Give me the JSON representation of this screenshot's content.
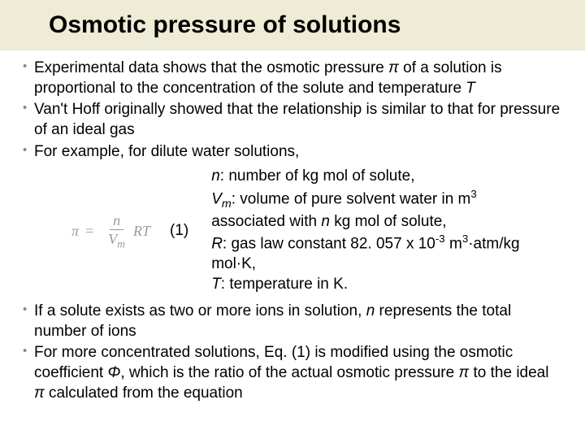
{
  "title": "Osmotic pressure of solutions",
  "bullets_top": [
    {
      "pre": "Experimental data shows that the osmotic pressure ",
      "sym1": "π",
      "mid": " of a solution is proportional to the concentration of the solute and temperature ",
      "sym2": "T"
    },
    {
      "text": "Van't Hoff originally showed that the relationship is similar to that for pressure of an ideal gas"
    },
    {
      "text": "For example, for dilute water solutions,"
    }
  ],
  "equation": {
    "lhs": "π",
    "eq": "=",
    "num": "n",
    "den_base": "V",
    "den_sub": "m",
    "rhs": "RT",
    "label": "(1)"
  },
  "defs": {
    "l1_a": "n",
    "l1_b": ": number of kg mol of solute,",
    "l2_a": "V",
    "l2_sub": "m",
    "l2_b": ": volume of pure solvent water in m",
    "l2_sup": "3",
    "l3_a": "associated with ",
    "l3_b": "n",
    "l3_c": " kg mol of solute,",
    "l4_a": "R",
    "l4_b": ": gas law constant 82. 057 x 10",
    "l4_sup": "-3",
    "l4_c": " m",
    "l4_sup2": "3",
    "l4_d": "·atm/kg mol·K,",
    "l5_a": "T",
    "l5_b": ": temperature in K."
  },
  "bullets_bottom": [
    {
      "pre": "If a solute exists as two or more ions in solution, ",
      "sym": "n",
      "post": " represents the total number of ions"
    },
    {
      "pre": "For more concentrated solutions, Eq. (1) is modified using the osmotic coefficient ",
      "sym1": "Φ",
      "mid": ", which is the ratio of the actual osmotic pressure ",
      "sym2": "π",
      "mid2": " to the ideal ",
      "sym3": "π",
      "post": " calculated from the equation"
    }
  ],
  "colors": {
    "title_bg": "#eeebd6",
    "text": "#000000",
    "bullet_marker": "#888888",
    "equation_gray": "#9a9a9a"
  },
  "fontsize": {
    "title": 30,
    "body": 19
  }
}
